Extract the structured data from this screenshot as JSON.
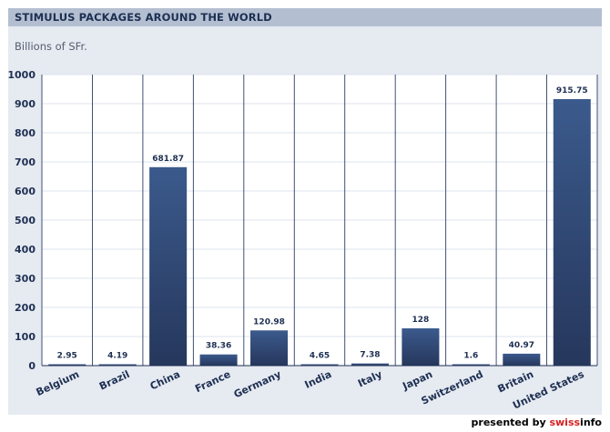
{
  "header": {
    "title": "STIMULUS PACKAGES AROUND THE WORLD"
  },
  "unit_label": "Billions of SFr.",
  "credit": {
    "prefix": "presented by",
    "brand_part1": "swiss",
    "brand_part2": "info"
  },
  "chart_data": {
    "type": "bar",
    "title": "STIMULUS PACKAGES AROUND THE WORLD",
    "ylabel": "Billions of SFr.",
    "categories": [
      "Belgium",
      "Brazil",
      "China",
      "France",
      "Germany",
      "India",
      "Italy",
      "Japan",
      "Switzerland",
      "Britain",
      "United States"
    ],
    "values": [
      2.95,
      4.19,
      681.87,
      38.36,
      120.98,
      4.65,
      7.38,
      128,
      1.6,
      40.97,
      915.75
    ],
    "value_labels": [
      "2.95",
      "4.19",
      "681.87",
      "38.36",
      "120.98",
      "4.65",
      "7.38",
      "128",
      "1.6",
      "40.97",
      "915.75"
    ],
    "ylim": [
      0,
      1000
    ],
    "yticks": [
      "0",
      "100",
      "200",
      "300",
      "400",
      "500",
      "600",
      "700",
      "800",
      "900",
      "1000"
    ],
    "grid": true,
    "bar_color_top": "#3b5a8c",
    "bar_color_bottom": "#26375c"
  }
}
